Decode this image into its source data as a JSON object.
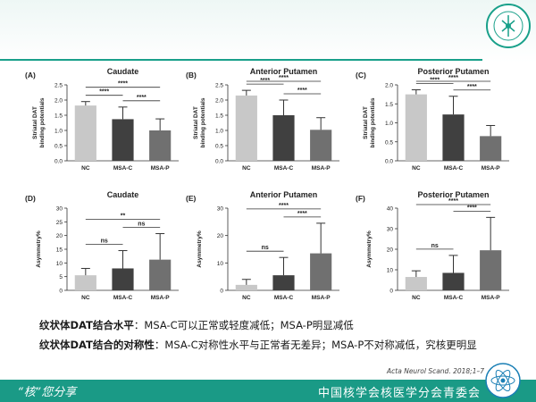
{
  "colors": {
    "accent": "#19a08a",
    "bar_nc": "#c8c8c8",
    "bar_msac": "#404040",
    "bar_msap": "#707070"
  },
  "text": {
    "line1_bold": "纹状体DAT结合水平",
    "line1_rest": "：MSA-C可以正常或轻度减低；MSA-P明显减低",
    "line2_bold": "纹状体DAT结合的对称性",
    "line2_rest": "：MSA-C对称性水平与正常者无差异；MSA-P不对称减低，究核更明显",
    "citation": "Acta Neurol Scand. 2018;1–7",
    "footer_left": "“核”您分享",
    "footer_right": "中国核学会核医学分会青委会"
  },
  "chart_data": [
    {
      "panel": "(A)",
      "title": "Caudate",
      "type": "bar",
      "categories": [
        "NC",
        "MSA-C",
        "MSA-P"
      ],
      "values": [
        1.82,
        1.37,
        1.0
      ],
      "errors": [
        0.13,
        0.4,
        0.38
      ],
      "ylabel": [
        "Striatal DAT",
        "binding potentials"
      ],
      "ylim": [
        0,
        2.5
      ],
      "yticks": [
        "0.0",
        "0.5",
        "1.0",
        "1.5",
        "2.0",
        "2.5"
      ],
      "sig": [
        {
          "from": 0,
          "to": 1,
          "label": "****"
        },
        {
          "from": 0,
          "to": 2,
          "label": "****"
        },
        {
          "from": 1,
          "to": 2,
          "label": "****"
        }
      ]
    },
    {
      "panel": "(B)",
      "title": "Anterior Putamen",
      "type": "bar",
      "categories": [
        "NC",
        "MSA-C",
        "MSA-P"
      ],
      "values": [
        2.15,
        1.5,
        1.02
      ],
      "errors": [
        0.17,
        0.5,
        0.4
      ],
      "ylabel": [
        "Striatal DAT",
        "binding potentials"
      ],
      "ylim": [
        0,
        2.5
      ],
      "yticks": [
        "0.0",
        "0.5",
        "1.0",
        "1.5",
        "2.0",
        "2.5"
      ],
      "sig": [
        {
          "from": 0,
          "to": 1,
          "label": "****"
        },
        {
          "from": 0,
          "to": 2,
          "label": "****"
        },
        {
          "from": 1,
          "to": 2,
          "label": "****"
        }
      ]
    },
    {
      "panel": "(C)",
      "title": "Posterior Putamen",
      "type": "bar",
      "categories": [
        "NC",
        "MSA-C",
        "MSA-P"
      ],
      "values": [
        1.75,
        1.22,
        0.65
      ],
      "errors": [
        0.12,
        0.48,
        0.28
      ],
      "ylabel": [
        "Striatal DAT",
        "binding potentials"
      ],
      "ylim": [
        0,
        2.0
      ],
      "yticks": [
        "0.0",
        "0.5",
        "1.0",
        "1.5",
        "2.0"
      ],
      "sig": [
        {
          "from": 0,
          "to": 1,
          "label": "****"
        },
        {
          "from": 0,
          "to": 2,
          "label": "****"
        },
        {
          "from": 1,
          "to": 2,
          "label": "****"
        }
      ]
    },
    {
      "panel": "(D)",
      "title": "Caudate",
      "type": "bar",
      "categories": [
        "NC",
        "MSA-C",
        "MSA-P"
      ],
      "values": [
        5.5,
        8.0,
        11.2
      ],
      "errors": [
        2.5,
        6.5,
        9.5
      ],
      "ylabel": [
        "Asymmetry%"
      ],
      "ylim": [
        0,
        30
      ],
      "yticks": [
        "0",
        "5",
        "10",
        "15",
        "20",
        "25",
        "30"
      ],
      "sig": [
        {
          "from": 0,
          "to": 1,
          "label": "ns"
        },
        {
          "from": 0,
          "to": 2,
          "label": "**"
        },
        {
          "from": 1,
          "to": 2,
          "label": "ns"
        }
      ]
    },
    {
      "panel": "(E)",
      "title": "Anterior Putamen",
      "type": "bar",
      "categories": [
        "NC",
        "MSA-C",
        "MSA-P"
      ],
      "values": [
        2.0,
        5.5,
        13.5
      ],
      "errors": [
        2.0,
        6.5,
        11.0
      ],
      "ylabel": [
        "Asymmetry%"
      ],
      "ylim": [
        0,
        30
      ],
      "yticks": [
        "0",
        "10",
        "20",
        "30"
      ],
      "sig": [
        {
          "from": 0,
          "to": 1,
          "label": "ns"
        },
        {
          "from": 0,
          "to": 2,
          "label": "****"
        },
        {
          "from": 1,
          "to": 2,
          "label": "****"
        }
      ]
    },
    {
      "panel": "(F)",
      "title": "Posterior Putamen",
      "type": "bar",
      "categories": [
        "NC",
        "MSA-C",
        "MSA-P"
      ],
      "values": [
        6.5,
        8.5,
        19.5
      ],
      "errors": [
        3.0,
        8.5,
        16.0
      ],
      "ylabel": [
        "Asymmetry%"
      ],
      "ylim": [
        0,
        40
      ],
      "yticks": [
        "0",
        "10",
        "20",
        "30",
        "40"
      ],
      "sig": [
        {
          "from": 0,
          "to": 1,
          "label": "ns"
        },
        {
          "from": 0,
          "to": 2,
          "label": "****"
        },
        {
          "from": 1,
          "to": 2,
          "label": "****"
        }
      ]
    }
  ]
}
